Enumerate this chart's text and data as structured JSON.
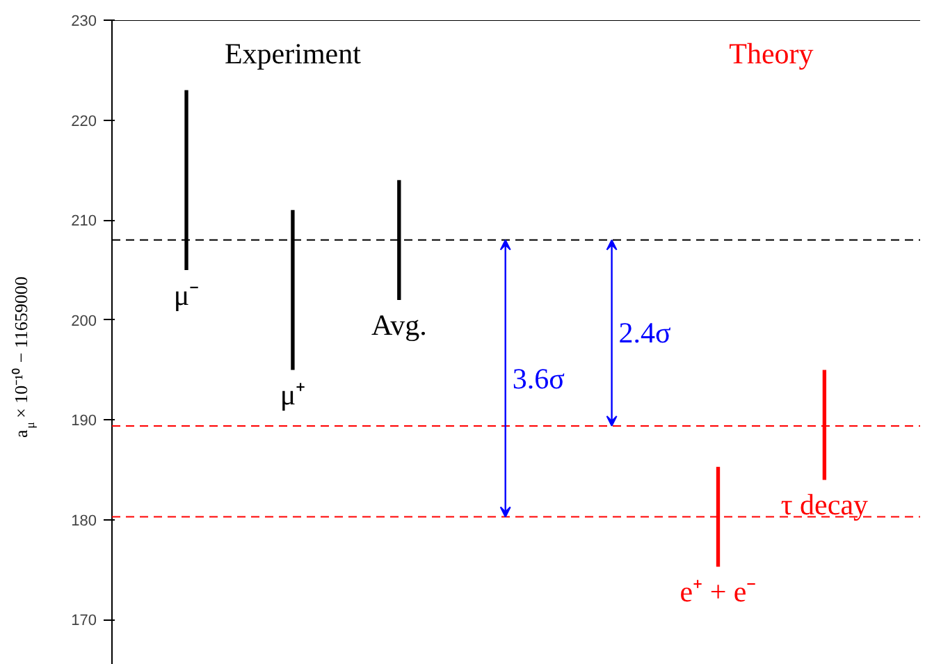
{
  "chart_data": {
    "type": "bar",
    "ylabel": "a$_{μ}$ × 10⁻¹⁰ − 11659000",
    "categories": [
      "μ⁻",
      "μ⁺",
      "Avg.",
      null,
      null,
      "e⁺ + e⁻",
      "τ decay"
    ],
    "series": [
      {
        "name": "Experiment",
        "color": "#000000",
        "values": [
          18,
          16,
          12,
          null,
          null,
          null,
          null
        ],
        "base": [
          205,
          195,
          202,
          null,
          null,
          null,
          null
        ]
      },
      {
        "name": "Theory",
        "color": "#ff0000",
        "values": [
          null,
          null,
          null,
          null,
          null,
          10,
          11
        ],
        "base": [
          null,
          null,
          null,
          null,
          null,
          175.3,
          184
        ]
      }
    ],
    "ylim": [
      165.5,
      230
    ],
    "yticks": [
      170,
      180,
      190,
      200,
      210,
      220,
      230
    ],
    "tick_labels": "y",
    "grid": false,
    "ref_lines": [
      {
        "axis": "y",
        "value": 208,
        "color": "#000000",
        "line_style": "dashed"
      },
      {
        "axis": "y",
        "value": 189.4,
        "color": "#ff0000",
        "line_style": "dashed"
      },
      {
        "axis": "y",
        "value": 180.3,
        "color": "#ff0000",
        "line_style": "dashed"
      }
    ],
    "annotations": [
      "3.6σ",
      "2.4σ"
    ]
  }
}
